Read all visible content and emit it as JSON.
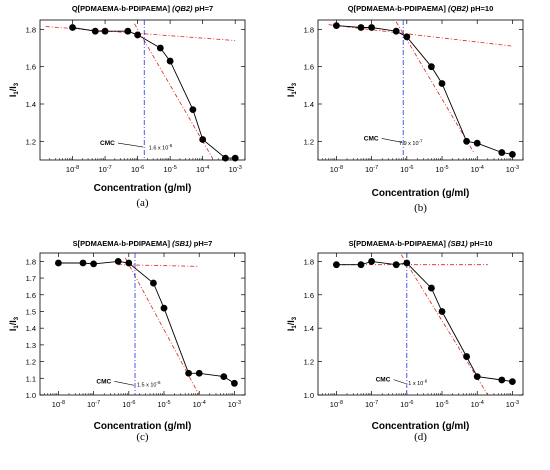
{
  "chart_data": [
    {
      "type": "scatter",
      "panel_label": "(a)",
      "title_main": "Q[PDMAEMA-b-PDIPAEMA] ",
      "title_italic": "(QB2)",
      "title_suffix": " pH=7",
      "xlabel": "Concentration (g/ml)",
      "ylabel_main": "I",
      "ylabel_sub1": "1",
      "ylabel_sep": "/I",
      "ylabel_sub2": "3",
      "x_scale": "log",
      "xlim": [
        1e-09,
        0.002
      ],
      "ylim": [
        1.1,
        1.85
      ],
      "x_tick_values": [
        1e-08,
        1e-07,
        1e-06,
        1e-05,
        0.0001,
        0.001
      ],
      "x_tick_labels": [
        "10-8",
        "10-7",
        "10-6",
        "10-5",
        "10-4",
        "10-3"
      ],
      "y_tick_values": [
        1.2,
        1.4,
        1.6,
        1.8
      ],
      "y_tick_labels": [
        "1.2",
        "1.4",
        "1.6",
        "1.8"
      ],
      "x": [
        1e-08,
        5e-08,
        1e-07,
        5e-07,
        1e-06,
        5e-06,
        1e-05,
        5e-05,
        0.0001,
        0.0005,
        0.001
      ],
      "y": [
        1.81,
        1.79,
        1.79,
        1.79,
        1.77,
        1.7,
        1.63,
        1.37,
        1.21,
        1.11,
        1.11
      ],
      "flat_line": [
        [
          1.5e-09,
          1.815
        ],
        [
          0.001,
          1.74
        ]
      ],
      "steep_line": [
        [
          8e-07,
          1.83
        ],
        [
          0.0002,
          1.11
        ]
      ],
      "cmc_x": 1.6e-06,
      "cmc_label": "CMC",
      "cmc_value": "1.6 x 10",
      "cmc_exp": "-6",
      "cmc_label_pos": [
        7e-08,
        1.18
      ],
      "cmc_value_pos": [
        2.2e-06,
        1.155
      ]
    },
    {
      "type": "scatter",
      "panel_label": "(b)",
      "title_main": "Q[PDMAEMA-b-PDIPAEMA] ",
      "title_italic": "(QB2)",
      "title_suffix": " pH=10",
      "xlabel": "Concentration (g/ml)",
      "ylabel_main": "I",
      "ylabel_sub1": "1",
      "ylabel_sep": "/I",
      "ylabel_sub2": "3",
      "x_scale": "log",
      "xlim": [
        3e-09,
        0.002
      ],
      "ylim": [
        1.1,
        1.85
      ],
      "x_tick_values": [
        1e-08,
        1e-07,
        1e-06,
        1e-05,
        0.0001,
        0.001
      ],
      "x_tick_labels": [
        "10-8",
        "10-7",
        "10-6",
        "10-5",
        "10-4",
        "10-3"
      ],
      "y_tick_values": [
        1.2,
        1.4,
        1.6,
        1.8
      ],
      "y_tick_labels": [
        "1.2",
        "1.4",
        "1.6",
        "1.8"
      ],
      "x": [
        1e-08,
        5e-08,
        1e-07,
        5e-07,
        1e-06,
        5e-06,
        1e-05,
        5e-05,
        0.0001,
        0.0005,
        0.001
      ],
      "y": [
        1.82,
        1.81,
        1.81,
        1.79,
        1.76,
        1.6,
        1.51,
        1.2,
        1.19,
        1.14,
        1.13
      ],
      "flat_line": [
        [
          6e-09,
          1.825
        ],
        [
          0.001,
          1.71
        ]
      ],
      "steep_line": [
        [
          5e-07,
          1.84
        ],
        [
          8e-05,
          1.14
        ]
      ],
      "cmc_x": 7.9e-07,
      "cmc_label": "CMC",
      "cmc_value": "7.9 x 10",
      "cmc_exp": "-7",
      "cmc_label_pos": [
        6e-08,
        1.205
      ],
      "cmc_value_pos": [
        6e-07,
        1.18
      ]
    },
    {
      "type": "scatter",
      "panel_label": "(c)",
      "title_main": "S[PDMAEMA-b-PDIPAEMA] ",
      "title_italic": "(SB1)",
      "title_suffix": " pH=7",
      "xlabel": "Concentration (g/ml)",
      "ylabel_main": "I",
      "ylabel_sub1": "1",
      "ylabel_sep": "/I",
      "ylabel_sub2": "3",
      "x_scale": "log",
      "xlim": [
        3e-09,
        0.002
      ],
      "ylim": [
        1.0,
        1.85
      ],
      "x_tick_values": [
        1e-08,
        1e-07,
        1e-06,
        1e-05,
        0.0001,
        0.001
      ],
      "x_tick_labels": [
        "10-8",
        "10-7",
        "10-6",
        "10-5",
        "10-4",
        "10-3"
      ],
      "y_tick_values": [
        1.0,
        1.1,
        1.2,
        1.3,
        1.4,
        1.5,
        1.6,
        1.7,
        1.8
      ],
      "y_tick_labels": [
        "1.0",
        "1.1",
        "1.2",
        "1.3",
        "1.4",
        "1.5",
        "1.6",
        "1.7",
        "1.8"
      ],
      "x": [
        1e-08,
        5e-08,
        1e-07,
        5e-07,
        1e-06,
        5e-06,
        1e-05,
        5e-05,
        0.0001,
        0.0005,
        0.001
      ],
      "y": [
        1.79,
        1.79,
        1.785,
        1.8,
        1.79,
        1.67,
        1.52,
        1.13,
        1.13,
        1.11,
        1.07
      ],
      "flat_line": [
        [
          5e-07,
          1.78
        ],
        [
          0.0001,
          1.77
        ]
      ],
      "steep_line": [
        [
          8e-07,
          1.82
        ],
        [
          0.0001,
          1.0
        ]
      ],
      "cmc_x": 1.5e-06,
      "cmc_label": "CMC",
      "cmc_value": "1.5 x 10",
      "cmc_exp": "-6",
      "cmc_label_pos": [
        1.2e-07,
        1.07
      ],
      "cmc_value_pos": [
        1.7e-06,
        1.05
      ]
    },
    {
      "type": "scatter",
      "panel_label": "(d)",
      "title_main": "S[PDMAEMA-b-PDIPAEMA] ",
      "title_italic": "(SB1)",
      "title_suffix": " pH=10",
      "xlabel": "Concentration (g/ml)",
      "ylabel_main": "I",
      "ylabel_sub1": "1",
      "ylabel_sep": "/I",
      "ylabel_sub2": "3",
      "x_scale": "log",
      "xlim": [
        3e-09,
        0.002
      ],
      "ylim": [
        1.0,
        1.85
      ],
      "x_tick_values": [
        1e-08,
        1e-07,
        1e-06,
        1e-05,
        0.0001,
        0.001
      ],
      "x_tick_labels": [
        "10-8",
        "10-7",
        "10-6",
        "10-5",
        "10-4",
        "10-3"
      ],
      "y_tick_values": [
        1.0,
        1.2,
        1.4,
        1.6,
        1.8
      ],
      "y_tick_labels": [
        "1.0",
        "1.2",
        "1.4",
        "1.6",
        "1.8"
      ],
      "x": [
        1e-08,
        5e-08,
        1e-07,
        5e-07,
        1e-06,
        5e-06,
        1e-05,
        5e-05,
        0.0001,
        0.0005,
        0.001
      ],
      "y": [
        1.78,
        1.78,
        1.8,
        1.78,
        1.79,
        1.64,
        1.5,
        1.23,
        1.11,
        1.09,
        1.08
      ],
      "flat_line": [
        [
          8e-09,
          1.78
        ],
        [
          0.0002,
          1.78
        ]
      ],
      "steep_line": [
        [
          7e-07,
          1.84
        ],
        [
          0.0002,
          1.0
        ]
      ],
      "cmc_x": 1e-06,
      "cmc_label": "CMC",
      "cmc_value": "1 x 10",
      "cmc_exp": "-6",
      "cmc_label_pos": [
        1.3e-07,
        1.08
      ],
      "cmc_value_pos": [
        1.1e-06,
        1.06
      ]
    }
  ]
}
